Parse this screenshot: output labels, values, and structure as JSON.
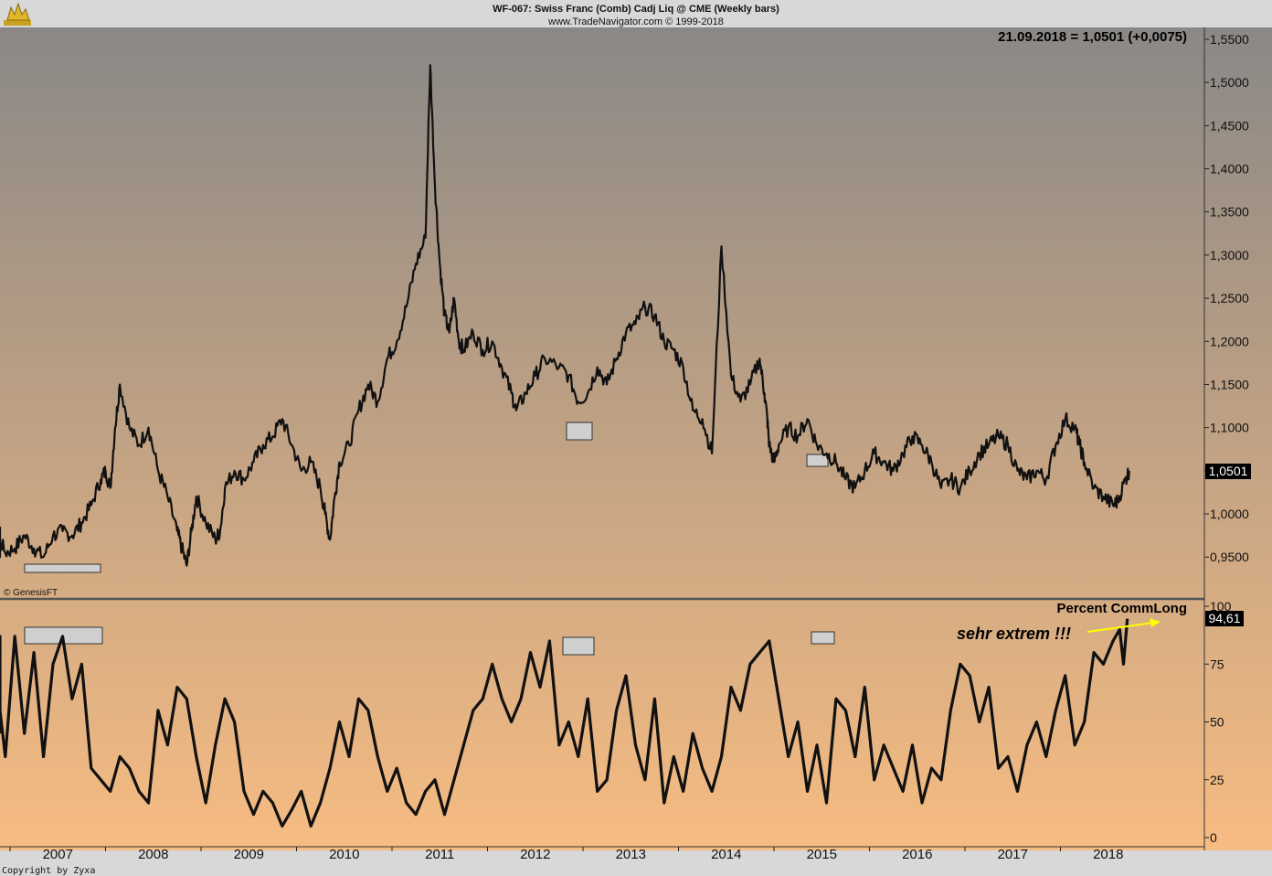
{
  "header": {
    "title": "WF-067:  Swiss Franc (Comb) Cadj Liq @ CME  (Weekly bars)",
    "subtitle": "www.TradeNavigator.com © 1999-2018",
    "last_price_label": "21.09.2018 = 1,0501 (+0,0075)",
    "data_credit": "© GenesisFT",
    "footer_credit": "Copyright by Zyxa"
  },
  "colors": {
    "top_gradient_start": "#8a8886",
    "bottom_gradient_end": "#f7bc82",
    "line": "#111111",
    "marker_fill": "#cfcfcf",
    "annotation": "#ffff00"
  },
  "icons": {
    "logo": "trade-navigator-bull-icon"
  },
  "chart_data": [
    {
      "type": "line",
      "panel": "price",
      "title": "Swiss Franc (Comb) Cadj Liq @ CME (Weekly bars)",
      "xlabel": "",
      "ylabel": "",
      "x_ticks": [
        "2007",
        "2008",
        "2009",
        "2010",
        "2011",
        "2012",
        "2013",
        "2014",
        "2015",
        "2016",
        "2017",
        "2018"
      ],
      "ylim": [
        0.915,
        1.56
      ],
      "y_ticks": [
        "1,5500",
        "1,5000",
        "1,4500",
        "1,4000",
        "1,3500",
        "1,3000",
        "1,2500",
        "1,2000",
        "1,1500",
        "1,1000",
        "1,0500",
        "1,0000",
        "0,9500"
      ],
      "last_value_label": "1,0501",
      "grid": false,
      "series": [
        {
          "x": [
            2006.45,
            2006.55,
            2006.65,
            2006.75,
            2006.85,
            2006.95,
            2007.05,
            2007.15,
            2007.25,
            2007.35,
            2007.45,
            2007.55,
            2007.65,
            2007.75,
            2007.85,
            2007.95,
            2008.0,
            2008.05,
            2008.1,
            2008.15,
            2008.25,
            2008.35,
            2008.45,
            2008.55,
            2008.65,
            2008.75,
            2008.8,
            2008.85,
            2008.9,
            2008.95,
            2009.05,
            2009.15,
            2009.2,
            2009.25,
            2009.35,
            2009.45,
            2009.55,
            2009.65,
            2009.75,
            2009.85,
            2009.95,
            2010.05,
            2010.15,
            2010.25,
            2010.3,
            2010.35,
            2010.4,
            2010.45,
            2010.55,
            2010.65,
            2010.75,
            2010.85,
            2010.95,
            2011.05,
            2011.15,
            2011.25,
            2011.35,
            2011.4,
            2011.45,
            2011.5,
            2011.55,
            2011.6,
            2011.65,
            2011.7,
            2011.75,
            2011.85,
            2011.95,
            2012.05,
            2012.15,
            2012.25,
            2012.3,
            2012.4,
            2012.5,
            2012.6,
            2012.75,
            2012.85,
            2012.95,
            2013.05,
            2013.15,
            2013.25,
            2013.35,
            2013.45,
            2013.55,
            2013.65,
            2013.75,
            2013.85,
            2013.95,
            2014.05,
            2014.15,
            2014.25,
            2014.35,
            2014.45,
            2014.55,
            2014.65,
            2014.75,
            2014.85,
            2014.9,
            2014.93,
            2014.95,
            2015.0,
            2015.05,
            2015.15,
            2015.25,
            2015.35,
            2015.45,
            2015.55,
            2015.65,
            2015.75,
            2015.85,
            2015.95,
            2016.05,
            2016.15,
            2016.25,
            2016.35,
            2016.45,
            2016.55,
            2016.65,
            2016.75,
            2016.85,
            2016.95,
            2017.05,
            2017.15,
            2017.25,
            2017.35,
            2017.45,
            2017.55,
            2017.65,
            2017.75,
            2017.85,
            2017.95,
            2018.05,
            2018.15,
            2018.2,
            2018.25,
            2018.35,
            2018.45,
            2018.55,
            2018.6,
            2018.68,
            2018.72
          ],
          "y": [
            0.985,
            0.975,
            0.955,
            0.965,
            0.98,
            0.955,
            0.96,
            0.975,
            0.96,
            0.95,
            0.975,
            0.98,
            0.975,
            0.99,
            1.01,
            1.04,
            1.05,
            1.03,
            1.1,
            1.15,
            1.1,
            1.08,
            1.1,
            1.05,
            1.02,
            0.98,
            0.96,
            0.94,
            0.98,
            1.02,
            0.99,
            0.97,
            0.98,
            1.03,
            1.05,
            1.04,
            1.06,
            1.08,
            1.09,
            1.11,
            1.08,
            1.05,
            1.06,
            1.03,
            1.0,
            0.97,
            1.02,
            1.06,
            1.08,
            1.12,
            1.15,
            1.13,
            1.18,
            1.2,
            1.24,
            1.29,
            1.32,
            1.52,
            1.38,
            1.29,
            1.23,
            1.21,
            1.25,
            1.2,
            1.19,
            1.21,
            1.19,
            1.2,
            1.17,
            1.14,
            1.12,
            1.14,
            1.16,
            1.18,
            1.17,
            1.16,
            1.13,
            1.14,
            1.17,
            1.15,
            1.18,
            1.21,
            1.22,
            1.24,
            1.23,
            1.2,
            1.19,
            1.17,
            1.12,
            1.11,
            1.07,
            1.31,
            1.16,
            1.13,
            1.15,
            1.18,
            1.14,
            1.11,
            1.08,
            1.06,
            1.08,
            1.1,
            1.09,
            1.11,
            1.08,
            1.07,
            1.06,
            1.04,
            1.03,
            1.05,
            1.07,
            1.06,
            1.05,
            1.07,
            1.09,
            1.08,
            1.06,
            1.03,
            1.04,
            1.03,
            1.05,
            1.07,
            1.08,
            1.09,
            1.08,
            1.05,
            1.04,
            1.05,
            1.04,
            1.08,
            1.11,
            1.1,
            1.08,
            1.06,
            1.03,
            1.02,
            1.01,
            1.015,
            1.04,
            1.0501
          ]
        }
      ]
    },
    {
      "type": "line",
      "panel": "indicator",
      "title": "Percent CommLong",
      "xlabel": "",
      "ylabel": "",
      "ylim": [
        -2,
        102
      ],
      "y_ticks": [
        "100",
        "75",
        "50",
        "25",
        "0"
      ],
      "last_value_label": "94,61",
      "annotation": "sehr extrem !!!",
      "series": [
        {
          "x": [
            2006.45,
            2006.55,
            2006.65,
            2006.75,
            2006.85,
            2006.95,
            2007.05,
            2007.15,
            2007.25,
            2007.35,
            2007.45,
            2007.55,
            2007.65,
            2007.75,
            2007.85,
            2007.95,
            2008.05,
            2008.15,
            2008.25,
            2008.35,
            2008.45,
            2008.55,
            2008.65,
            2008.75,
            2008.85,
            2008.95,
            2009.05,
            2009.15,
            2009.25,
            2009.35,
            2009.45,
            2009.55,
            2009.65,
            2009.75,
            2009.85,
            2009.95,
            2010.05,
            2010.15,
            2010.25,
            2010.35,
            2010.45,
            2010.55,
            2010.65,
            2010.75,
            2010.85,
            2010.95,
            2011.05,
            2011.15,
            2011.25,
            2011.35,
            2011.45,
            2011.55,
            2011.65,
            2011.75,
            2011.85,
            2011.95,
            2012.05,
            2012.15,
            2012.25,
            2012.35,
            2012.45,
            2012.55,
            2012.65,
            2012.75,
            2012.85,
            2012.95,
            2013.05,
            2013.15,
            2013.25,
            2013.35,
            2013.45,
            2013.55,
            2013.65,
            2013.75,
            2013.85,
            2013.95,
            2014.05,
            2014.15,
            2014.25,
            2014.35,
            2014.45,
            2014.55,
            2014.65,
            2014.75,
            2014.85,
            2014.95,
            2015.05,
            2015.15,
            2015.25,
            2015.35,
            2015.45,
            2015.55,
            2015.65,
            2015.75,
            2015.85,
            2015.95,
            2016.05,
            2016.15,
            2016.25,
            2016.35,
            2016.45,
            2016.55,
            2016.65,
            2016.75,
            2016.85,
            2016.95,
            2017.05,
            2017.15,
            2017.25,
            2017.35,
            2017.45,
            2017.55,
            2017.65,
            2017.75,
            2017.85,
            2017.95,
            2018.05,
            2018.15,
            2018.25,
            2018.35,
            2018.45,
            2018.55,
            2018.62,
            2018.66,
            2018.7
          ],
          "y": [
            45,
            60,
            75,
            87,
            55,
            35,
            87,
            45,
            80,
            35,
            75,
            87,
            60,
            75,
            30,
            25,
            20,
            35,
            30,
            20,
            15,
            55,
            40,
            65,
            60,
            35,
            15,
            40,
            60,
            50,
            20,
            10,
            20,
            15,
            5,
            12,
            20,
            5,
            15,
            30,
            50,
            35,
            60,
            55,
            35,
            20,
            30,
            15,
            10,
            20,
            25,
            10,
            25,
            40,
            55,
            60,
            75,
            60,
            50,
            60,
            80,
            65,
            85,
            40,
            50,
            35,
            60,
            20,
            25,
            55,
            70,
            40,
            25,
            60,
            15,
            35,
            20,
            45,
            30,
            20,
            35,
            65,
            55,
            75,
            80,
            85,
            60,
            35,
            50,
            20,
            40,
            15,
            60,
            55,
            35,
            65,
            25,
            40,
            30,
            20,
            40,
            15,
            30,
            25,
            55,
            75,
            70,
            50,
            65,
            30,
            35,
            20,
            40,
            50,
            35,
            55,
            70,
            40,
            50,
            80,
            75,
            85,
            90,
            75,
            94.61
          ]
        }
      ]
    }
  ]
}
